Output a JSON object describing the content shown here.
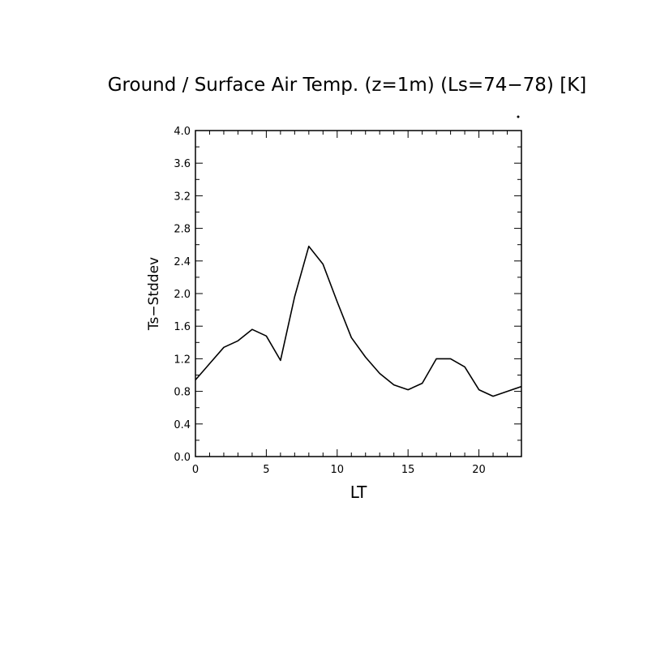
{
  "chart_data": {
    "type": "line",
    "title": "Ground / Surface Air Temp. (z=1m) (Ls=74−78) [K]",
    "xlabel": "LT",
    "ylabel": "Ts−Stddev",
    "xlim": [
      0,
      23
    ],
    "ylim": [
      0,
      4.0
    ],
    "x_major_ticks": [
      0,
      5,
      10,
      15,
      20
    ],
    "x_tick_labels": [
      "0",
      "5",
      "10",
      "15",
      "20"
    ],
    "x_minor_step": 1,
    "y_major_ticks": [
      0,
      0.4,
      0.8,
      1.2,
      1.6,
      2.0,
      2.4,
      2.8,
      3.2,
      3.6,
      4.0
    ],
    "y_tick_labels": [
      "0.0",
      "0.4",
      "0.8",
      "1.2",
      "1.6",
      "2.0",
      "2.4",
      "2.8",
      "3.2",
      "3.6",
      "4.0"
    ],
    "y_minor_step": 0.2,
    "grid": false,
    "line_color": "#000000",
    "series": [
      {
        "x": [
          0,
          1,
          2,
          3,
          4,
          5,
          6,
          7,
          8,
          9,
          10,
          11,
          12,
          13,
          14,
          15,
          16,
          17,
          18,
          19,
          20,
          21,
          22,
          23
        ],
        "values": [
          0.94,
          1.14,
          1.34,
          1.42,
          1.56,
          1.48,
          1.18,
          1.96,
          2.58,
          2.36,
          1.9,
          1.46,
          1.22,
          1.02,
          0.88,
          0.82,
          0.9,
          1.2,
          1.2,
          1.1,
          0.82,
          0.74,
          0.8,
          0.86
        ]
      }
    ]
  }
}
